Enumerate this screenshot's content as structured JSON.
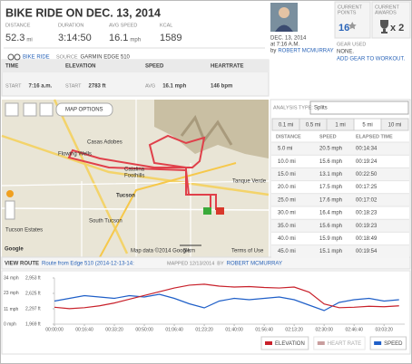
{
  "header": {
    "title": "BIKE RIDE ON DEC. 13, 2014",
    "stats": [
      {
        "label": "DISTANCE",
        "value": "52.3",
        "unit": "mi"
      },
      {
        "label": "DURATION",
        "value": "3:14:50"
      },
      {
        "label": "AVG SPEED",
        "value": "16.1",
        "unit": "mph"
      },
      {
        "label": "KCAL",
        "value": "1589"
      }
    ],
    "activity": "BIKE RIDE",
    "source_label": "SOURCE",
    "source": "GARMIN EDGE 510"
  },
  "profile": {
    "date": "DEC. 13, 2014",
    "time": "at 7:16 A.M.",
    "by": "by",
    "user": "ROBERT MCMURRAY"
  },
  "points": {
    "label": [
      "CURRENT",
      "POINTS"
    ],
    "value": "16"
  },
  "awards": {
    "label": [
      "CURRENT",
      "AWARDS"
    ],
    "value": "x 2"
  },
  "gear": {
    "label": "GEAR USED",
    "value": "NONE.",
    "link": "ADD GEAR TO WORKOUT."
  },
  "summary": [
    {
      "title": "TIME",
      "sub": "START",
      "value": "7:16 a.m."
    },
    {
      "title": "ELEVATION",
      "sub": "START",
      "value": "2783 ft"
    },
    {
      "title": "SPEED",
      "sub": "AVG",
      "value": "16.1 mph"
    },
    {
      "title": "HEARTRATE",
      "value": "146 bpm"
    }
  ],
  "map": {
    "options": "MAP OPTIONS",
    "labels": [
      "Casas Adobes",
      "Flowing Wells",
      "Catalina",
      "Foothills",
      "Tucson",
      "South Tucson",
      "Tanque Verde",
      "Tucson Estates"
    ],
    "attribution": "Map data ©2014 Google",
    "scale": "5 km",
    "terms": "Terms of Use",
    "logo": "Google"
  },
  "splits": {
    "analysis_label": "ANALYSIS TYPE:",
    "analysis_value": "Splits",
    "tabs": [
      "0.1 mi",
      "0.5 mi",
      "1 mi",
      "5 mi",
      "10 mi"
    ],
    "active_tab": 3,
    "columns": [
      "DISTANCE",
      "SPEED",
      "ELAPSED TIME"
    ],
    "rows": [
      [
        "5.0 mi",
        "20.5 mph",
        "00:14:34"
      ],
      [
        "10.0 mi",
        "15.6 mph",
        "00:19:24"
      ],
      [
        "15.0 mi",
        "13.1 mph",
        "00:22:50"
      ],
      [
        "20.0 mi",
        "17.5 mph",
        "00:17:25"
      ],
      [
        "25.0 mi",
        "17.6 mph",
        "00:17:02"
      ],
      [
        "30.0 mi",
        "16.4 mph",
        "00:18:23"
      ],
      [
        "35.0 mi",
        "15.6 mph",
        "00:19:23"
      ],
      [
        "40.0 mi",
        "15.9 mph",
        "00:18:49"
      ],
      [
        "45.0 mi",
        "15.1 mph",
        "00:19:54"
      ]
    ]
  },
  "route": {
    "label": "VIEW ROUTE",
    "name": "Route from Edge 510 (2014-12-13-14:",
    "mapped": "MAPPED 12/13/2014",
    "by": "BY",
    "user": "ROBERT MCMURRAY"
  },
  "chart_data": {
    "type": "line",
    "x": [
      0,
      500,
      1000,
      1500,
      2000,
      2500,
      3000,
      3500,
      4000,
      4500,
      5000,
      5500,
      6000,
      6500,
      7000,
      7500,
      8000,
      8500,
      9000,
      9500,
      10000,
      10500,
      11000,
      11500
    ],
    "xlim": [
      0,
      11690
    ],
    "xticks": [
      {
        "value": 0,
        "label": "00:00:00"
      },
      {
        "value": 1000,
        "label": "00:16:40"
      },
      {
        "value": 2000,
        "label": "00:33:20"
      },
      {
        "value": 3000,
        "label": "00:50:00"
      },
      {
        "value": 4000,
        "label": "01:06:40"
      },
      {
        "value": 5000,
        "label": "01:23:20"
      },
      {
        "value": 6000,
        "label": "01:40:00"
      },
      {
        "value": 7000,
        "label": "01:56:40"
      },
      {
        "value": 8000,
        "label": "02:13:20"
      },
      {
        "value": 9000,
        "label": "02:30:00"
      },
      {
        "value": 10000,
        "label": "02:46:40"
      },
      {
        "value": 11000,
        "label": "03:03:20"
      }
    ],
    "ylim": [
      0,
      34
    ],
    "yticks": [
      {
        "value": 34,
        "label": "34 mph"
      },
      {
        "value": 23,
        "label": "23 mph"
      },
      {
        "value": 11,
        "label": "11 mph"
      },
      {
        "value": 0,
        "label": "0 mph"
      }
    ],
    "y2lim": [
      1969,
      2953
    ],
    "y2ticks": [
      {
        "value": 2953,
        "label": "2,953 ft"
      },
      {
        "value": 2625,
        "label": "2,625 ft"
      },
      {
        "value": 2297,
        "label": "2,297 ft"
      },
      {
        "value": 1969,
        "label": "1,969 ft"
      }
    ],
    "series": [
      {
        "name": "SPEED",
        "color": "#1f5fc8",
        "values": [
          17,
          19,
          21,
          20,
          19,
          21,
          20,
          22,
          19,
          15,
          12,
          17,
          19,
          18,
          19,
          20,
          18,
          14,
          10,
          16,
          18,
          19,
          17,
          18
        ]
      },
      {
        "name": "ELEVATION",
        "color": "#c8202a",
        "axis": "y2",
        "values": [
          2330,
          2300,
          2320,
          2360,
          2420,
          2500,
          2580,
          2660,
          2740,
          2800,
          2820,
          2780,
          2760,
          2770,
          2750,
          2740,
          2760,
          2650,
          2400,
          2320,
          2330,
          2350,
          2340,
          2360
        ]
      }
    ],
    "hidden_series": [
      {
        "name": "HEART RATE",
        "color": "#8a2a2a"
      }
    ],
    "grid": false
  }
}
